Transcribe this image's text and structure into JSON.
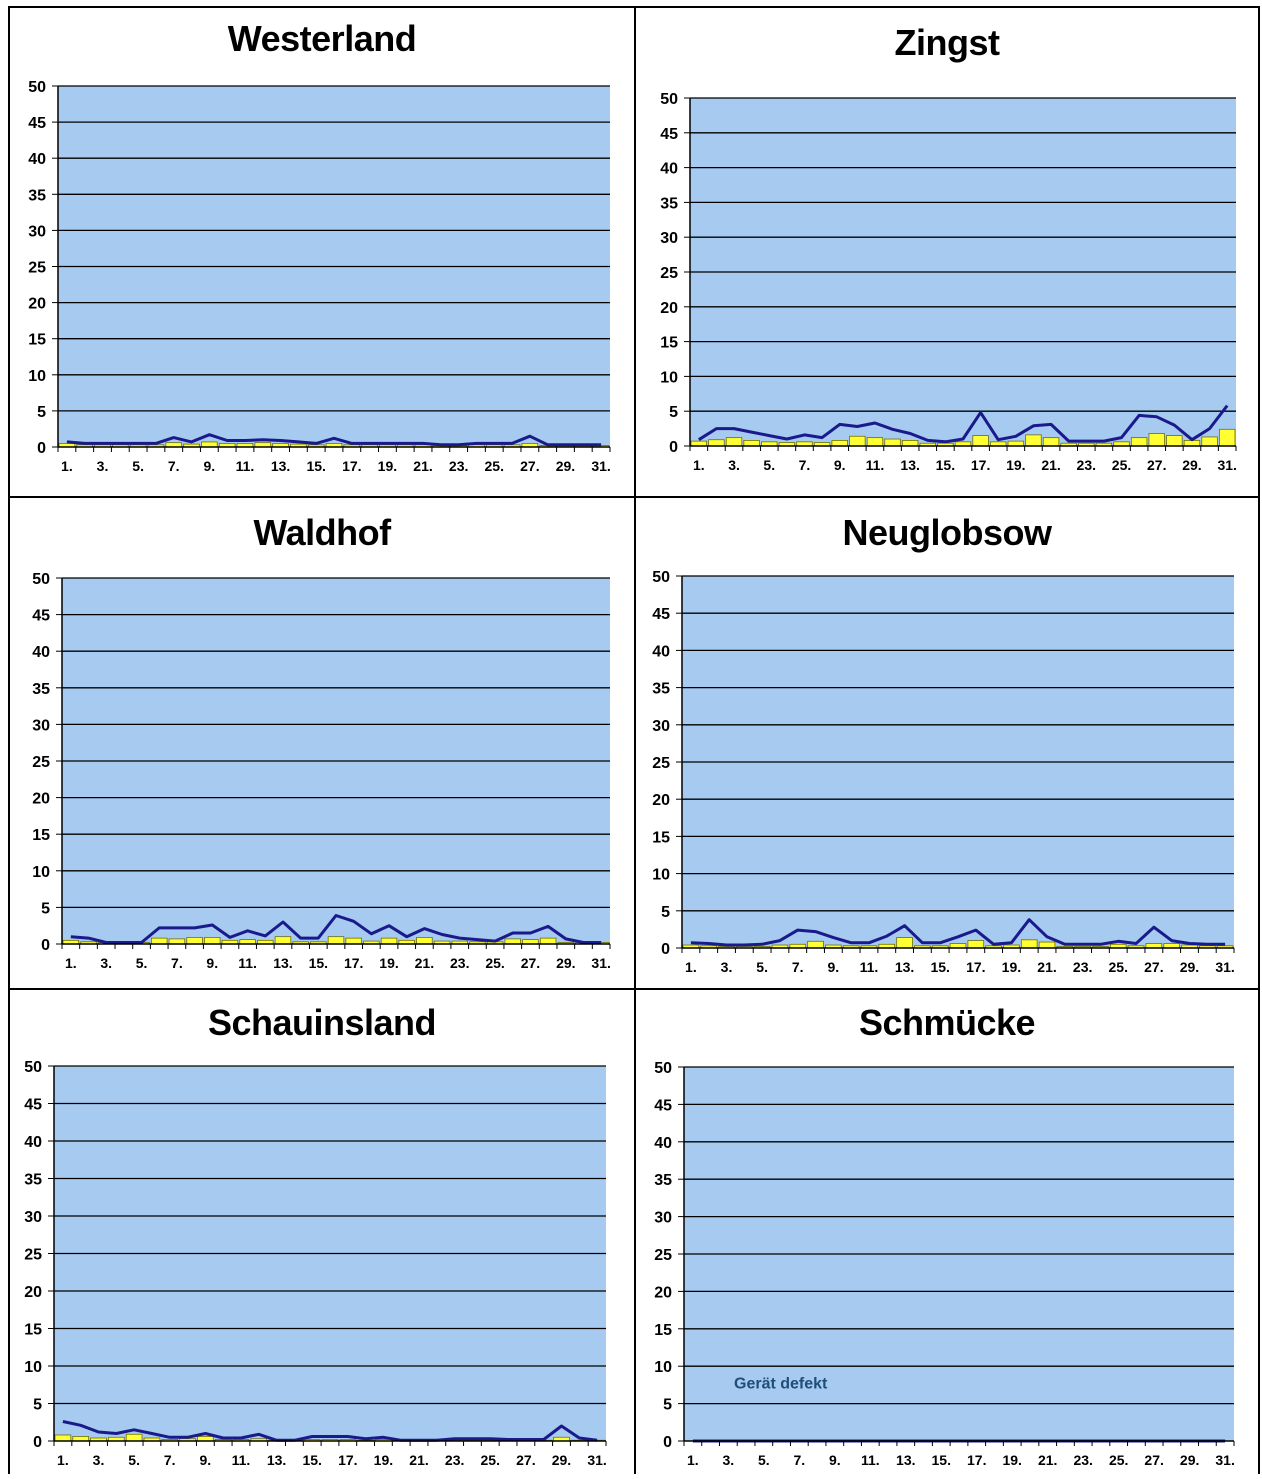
{
  "colors": {
    "plot_bg": "#A6CAF0",
    "bar_fill": "#FFFF33",
    "bar_stroke": "#6E6E00",
    "line": "#1A1A8C",
    "grid": "#000000",
    "annotation": "#1F4E79"
  },
  "x_tick_labels": [
    "1.",
    "3.",
    "5.",
    "7.",
    "9.",
    "11.",
    "13.",
    "15.",
    "17.",
    "19.",
    "21.",
    "23.",
    "25.",
    "27.",
    "29.",
    "31."
  ],
  "y_tick_labels": [
    "0",
    "5",
    "10",
    "15",
    "20",
    "25",
    "30",
    "35",
    "40",
    "45",
    "50"
  ],
  "chart_data": [
    {
      "type": "bar",
      "title": "Westerland",
      "ylim": [
        0,
        50
      ],
      "grid": true,
      "x": [
        1,
        2,
        3,
        4,
        5,
        6,
        7,
        8,
        9,
        10,
        11,
        12,
        13,
        14,
        15,
        16,
        17,
        18,
        19,
        20,
        21,
        22,
        23,
        24,
        25,
        26,
        27,
        28,
        29,
        30,
        31
      ],
      "series": [
        {
          "kind": "bar",
          "values": [
            0.5,
            0.3,
            0.3,
            0.3,
            0.3,
            0.3,
            0.6,
            0.4,
            0.7,
            0.5,
            0.5,
            0.6,
            0.5,
            0.4,
            0.3,
            0.5,
            0.3,
            0.3,
            0.3,
            0.3,
            0.3,
            0.2,
            0.2,
            0.3,
            0.3,
            0.3,
            0.5,
            0.2,
            0.2,
            0.2,
            0.2
          ]
        },
        {
          "kind": "line",
          "values": [
            0.7,
            0.5,
            0.5,
            0.5,
            0.5,
            0.5,
            1.3,
            0.7,
            1.7,
            0.9,
            0.9,
            1.0,
            0.9,
            0.7,
            0.5,
            1.2,
            0.5,
            0.5,
            0.5,
            0.5,
            0.5,
            0.3,
            0.3,
            0.5,
            0.5,
            0.5,
            1.5,
            0.3,
            0.3,
            0.3,
            0.3
          ]
        }
      ]
    },
    {
      "type": "bar",
      "title": "Zingst",
      "ylim": [
        0,
        50
      ],
      "grid": true,
      "x": [
        1,
        2,
        3,
        4,
        5,
        6,
        7,
        8,
        9,
        10,
        11,
        12,
        13,
        14,
        15,
        16,
        17,
        18,
        19,
        20,
        21,
        22,
        23,
        24,
        25,
        26,
        27,
        28,
        29,
        30,
        31
      ],
      "series": [
        {
          "kind": "bar",
          "values": [
            0.7,
            0.9,
            1.2,
            0.8,
            0.6,
            0.5,
            0.6,
            0.5,
            0.8,
            1.4,
            1.2,
            1.0,
            0.8,
            0.4,
            0.4,
            0.6,
            1.5,
            0.6,
            0.7,
            1.6,
            1.2,
            0.4,
            0.4,
            0.4,
            0.6,
            1.2,
            1.8,
            1.5,
            0.8,
            1.3,
            2.4
          ]
        },
        {
          "kind": "line",
          "values": [
            0.9,
            2.5,
            2.5,
            2.0,
            1.5,
            1.0,
            1.6,
            1.2,
            3.1,
            2.8,
            3.3,
            2.4,
            1.8,
            0.8,
            0.6,
            1.0,
            4.8,
            0.9,
            1.4,
            2.9,
            3.1,
            0.7,
            0.7,
            0.7,
            1.2,
            4.4,
            4.2,
            3.0,
            0.9,
            2.5,
            5.8
          ]
        }
      ]
    },
    {
      "type": "bar",
      "title": "Waldhof",
      "ylim": [
        0,
        50
      ],
      "grid": true,
      "x": [
        1,
        2,
        3,
        4,
        5,
        6,
        7,
        8,
        9,
        10,
        11,
        12,
        13,
        14,
        15,
        16,
        17,
        18,
        19,
        20,
        21,
        22,
        23,
        24,
        25,
        26,
        27,
        28,
        29,
        30,
        31
      ],
      "series": [
        {
          "kind": "bar",
          "values": [
            0.5,
            0.3,
            0.2,
            0.2,
            0.2,
            0.8,
            0.7,
            0.9,
            0.9,
            0.5,
            0.6,
            0.5,
            1.0,
            0.3,
            0.3,
            1.0,
            0.8,
            0.4,
            0.8,
            0.5,
            0.9,
            0.4,
            0.4,
            0.3,
            0.3,
            0.7,
            0.6,
            0.8,
            0.2,
            0.2,
            0.2
          ]
        },
        {
          "kind": "line",
          "values": [
            1.0,
            0.8,
            0.2,
            0.2,
            0.2,
            2.2,
            2.2,
            2.2,
            2.6,
            0.9,
            1.8,
            1.1,
            3.0,
            0.8,
            0.8,
            3.9,
            3.1,
            1.4,
            2.5,
            1.0,
            2.1,
            1.3,
            0.8,
            0.6,
            0.4,
            1.5,
            1.5,
            2.4,
            0.7,
            0.2,
            0.2
          ]
        }
      ]
    },
    {
      "type": "bar",
      "title": "Neuglobsow",
      "ylim": [
        0,
        50
      ],
      "grid": true,
      "x": [
        1,
        2,
        3,
        4,
        5,
        6,
        7,
        8,
        9,
        10,
        11,
        12,
        13,
        14,
        15,
        16,
        17,
        18,
        19,
        20,
        21,
        22,
        23,
        24,
        25,
        26,
        27,
        28,
        29,
        30,
        31
      ],
      "series": [
        {
          "kind": "bar",
          "values": [
            0.4,
            0.3,
            0.2,
            0.2,
            0.2,
            0.4,
            0.5,
            0.9,
            0.4,
            0.3,
            0.3,
            0.5,
            1.4,
            0.3,
            0.3,
            0.6,
            1.0,
            0.3,
            0.4,
            1.1,
            0.8,
            0.2,
            0.2,
            0.2,
            0.5,
            0.3,
            0.6,
            0.6,
            0.4,
            0.3,
            0.3
          ]
        },
        {
          "kind": "line",
          "values": [
            0.7,
            0.6,
            0.4,
            0.4,
            0.5,
            1.0,
            2.4,
            2.2,
            1.4,
            0.7,
            0.7,
            1.6,
            3.0,
            0.7,
            0.7,
            1.5,
            2.4,
            0.5,
            0.7,
            3.8,
            1.5,
            0.5,
            0.5,
            0.5,
            0.9,
            0.6,
            2.8,
            1.0,
            0.6,
            0.5,
            0.5
          ]
        }
      ]
    },
    {
      "type": "bar",
      "title": "Schauinsland",
      "ylim": [
        0,
        50
      ],
      "grid": true,
      "x": [
        1,
        2,
        3,
        4,
        5,
        6,
        7,
        8,
        9,
        10,
        11,
        12,
        13,
        14,
        15,
        16,
        17,
        18,
        19,
        20,
        21,
        22,
        23,
        24,
        25,
        26,
        27,
        28,
        29,
        30,
        31
      ],
      "series": [
        {
          "kind": "bar",
          "values": [
            0.8,
            0.6,
            0.4,
            0.5,
            0.9,
            0.4,
            0.2,
            0.3,
            0.6,
            0.2,
            0.2,
            0.3,
            0.1,
            0.1,
            0.2,
            0.2,
            0.2,
            0.1,
            0.2,
            0.1,
            0.1,
            0.1,
            0.1,
            0.1,
            0.1,
            0.1,
            0.1,
            0.1,
            0.5,
            0.1,
            0.1
          ]
        },
        {
          "kind": "line",
          "values": [
            2.6,
            2.1,
            1.2,
            1.0,
            1.5,
            1.0,
            0.5,
            0.5,
            1.0,
            0.4,
            0.4,
            0.9,
            0.1,
            0.1,
            0.6,
            0.6,
            0.6,
            0.3,
            0.5,
            0.1,
            0.1,
            0.1,
            0.3,
            0.3,
            0.3,
            0.2,
            0.2,
            0.2,
            2.0,
            0.4,
            0.1
          ]
        }
      ]
    },
    {
      "type": "bar",
      "title": "Schmücke",
      "ylim": [
        0,
        50
      ],
      "grid": true,
      "annotation": "Gerät defekt",
      "x": [
        1,
        2,
        3,
        4,
        5,
        6,
        7,
        8,
        9,
        10,
        11,
        12,
        13,
        14,
        15,
        16,
        17,
        18,
        19,
        20,
        21,
        22,
        23,
        24,
        25,
        26,
        27,
        28,
        29,
        30,
        31
      ],
      "series": [
        {
          "kind": "bar",
          "values": [
            0,
            0,
            0,
            0,
            0,
            0,
            0,
            0,
            0,
            0,
            0,
            0,
            0,
            0,
            0,
            0,
            0,
            0,
            0,
            0,
            0,
            0,
            0,
            0,
            0,
            0,
            0,
            0,
            0,
            0,
            0
          ]
        },
        {
          "kind": "line",
          "values": [
            0,
            0,
            0,
            0,
            0,
            0,
            0,
            0,
            0,
            0,
            0,
            0,
            0,
            0,
            0,
            0,
            0,
            0,
            0,
            0,
            0,
            0,
            0,
            0,
            0,
            0,
            0,
            0,
            0,
            0,
            0
          ]
        }
      ]
    }
  ]
}
